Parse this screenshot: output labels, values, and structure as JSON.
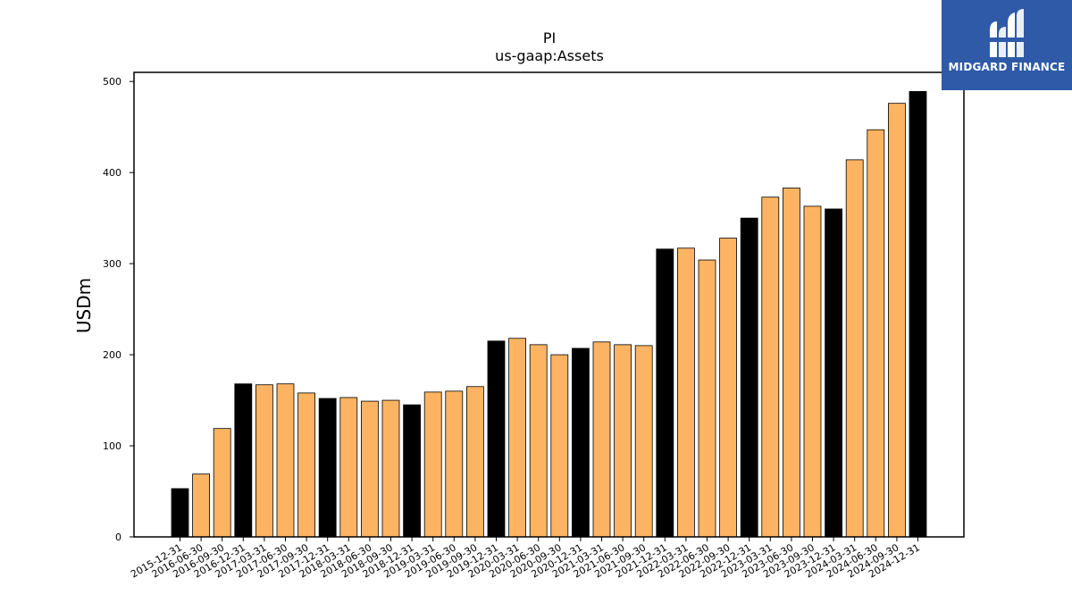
{
  "chart_data": {
    "type": "bar",
    "title": "PI",
    "subtitle": "us-gaap:Assets",
    "xlabel": "",
    "ylabel": "USDm",
    "ylim": [
      0,
      510
    ],
    "yticks": [
      0,
      100,
      200,
      300,
      400,
      500
    ],
    "grid": false,
    "categories": [
      "2015-12-31",
      "2016-06-30",
      "2016-09-30",
      "2016-12-31",
      "2017-03-31",
      "2017-06-30",
      "2017-09-30",
      "2017-12-31",
      "2018-03-31",
      "2018-06-30",
      "2018-09-30",
      "2018-12-31",
      "2019-03-31",
      "2019-06-30",
      "2019-09-30",
      "2019-12-31",
      "2020-03-31",
      "2020-06-30",
      "2020-09-30",
      "2020-12-31",
      "2021-03-31",
      "2021-06-30",
      "2021-09-30",
      "2021-12-31",
      "2022-03-31",
      "2022-06-30",
      "2022-09-30",
      "2022-12-31",
      "2023-03-31",
      "2023-06-30",
      "2023-09-30",
      "2023-12-31",
      "2024-03-31",
      "2024-06-30",
      "2024-09-30",
      "2024-12-31"
    ],
    "values": [
      53,
      69,
      119,
      168,
      167,
      168,
      158,
      152,
      153,
      149,
      150,
      145,
      159,
      160,
      165,
      215,
      218,
      211,
      200,
      207,
      214,
      211,
      210,
      316,
      317,
      304,
      328,
      350,
      373,
      383,
      363,
      360,
      414,
      447,
      476,
      489
    ],
    "annual_flags": [
      true,
      false,
      false,
      true,
      false,
      false,
      false,
      true,
      false,
      false,
      false,
      true,
      false,
      false,
      false,
      true,
      false,
      false,
      false,
      true,
      false,
      false,
      false,
      true,
      false,
      false,
      false,
      true,
      false,
      false,
      false,
      true,
      false,
      false,
      false,
      true
    ],
    "colors": {
      "annual": "#000000",
      "quarterly": "#fdb462",
      "edge": "#000000"
    }
  },
  "logo": {
    "text": "MIDGARD FINANCE",
    "background": "#2e5aa8"
  }
}
